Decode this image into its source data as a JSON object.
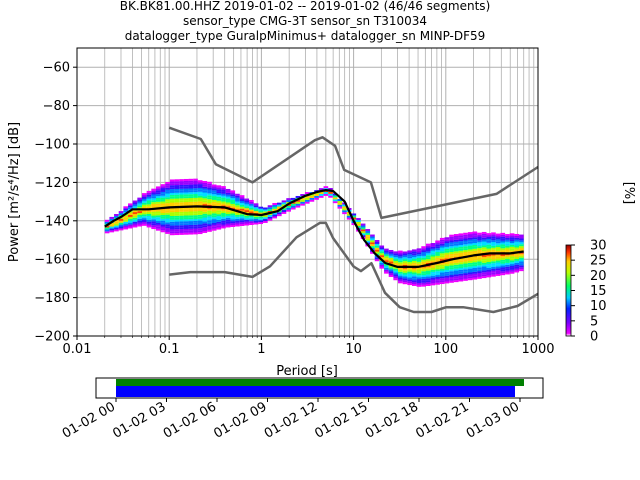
{
  "title_lines": [
    "BK.BK81.00.HHZ   2019-01-02 -- 2019-01-02  (46/46 segments)",
    "sensor_type CMG-3T sensor_sn T310034",
    "datalogger_type GuralpMinimus+ datalogger_sn MINP-DF59"
  ],
  "chart_data": {
    "type": "heatmap",
    "xlabel": "Period [s]",
    "ylabel": "Power [m²/s⁴/Hz] [dB]",
    "xscale": "log",
    "xlim": [
      0.01,
      1000
    ],
    "ylim": [
      -200,
      -50
    ],
    "x_ticks": [
      "0.01",
      "0.1",
      "1",
      "10",
      "100",
      "1000"
    ],
    "y_ticks": [
      "−200",
      "−180",
      "−160",
      "−140",
      "−120",
      "−100",
      "−80",
      "−60"
    ],
    "grid": true,
    "colorbar": {
      "label": "[%]",
      "range": [
        0,
        30
      ],
      "ticks": [
        "0",
        "5",
        "10",
        "15",
        "20",
        "25",
        "30"
      ]
    },
    "series": [
      {
        "role": "noise-model-high",
        "color": "#666666",
        "x": [
          0.1,
          0.22,
          0.32,
          0.8,
          3.8,
          4.6,
          6.3,
          7.9,
          15.4,
          20,
          354.8,
          1000
        ],
        "y": [
          -91.5,
          -97.4,
          -110.5,
          -120,
          -98,
          -96.5,
          -101,
          -113.5,
          -120,
          -138.5,
          -126,
          -112
        ]
      },
      {
        "role": "noise-model-low",
        "color": "#666666",
        "x": [
          0.1,
          0.17,
          0.4,
          0.8,
          1.24,
          2.4,
          4.3,
          5,
          6,
          10,
          12,
          15.6,
          21.9,
          31.6,
          45,
          70,
          101,
          154,
          328,
          600,
          1000
        ],
        "y": [
          -168,
          -166.7,
          -166.7,
          -169.2,
          -163.7,
          -148.6,
          -141.1,
          -141.1,
          -149,
          -163.8,
          -166.2,
          -162.1,
          -177.5,
          -185,
          -187.5,
          -187.5,
          -185,
          -185,
          -187.5,
          -184.4,
          -178
        ]
      },
      {
        "role": "median",
        "color": "#000000",
        "x": [
          0.02,
          0.025,
          0.03,
          0.04,
          0.06,
          0.1,
          0.2,
          0.4,
          0.7,
          1,
          1.5,
          2,
          3,
          4,
          5,
          6,
          8,
          10,
          13,
          17,
          22,
          30,
          50,
          80,
          120,
          200,
          300,
          500,
          700
        ],
        "y": [
          -143,
          -140,
          -138,
          -134,
          -134,
          -133,
          -132.5,
          -133,
          -136.5,
          -137,
          -135,
          -131,
          -127,
          -125,
          -124,
          -124.5,
          -130,
          -140,
          -150,
          -157,
          -162,
          -164,
          -164,
          -162,
          -160,
          -158,
          -157,
          -157,
          -156
        ]
      }
    ],
    "density_distribution": {
      "note": "probability density per period bin",
      "x": [
        0.02,
        0.05,
        0.1,
        0.2,
        0.4,
        1,
        2,
        5,
        10,
        20,
        30,
        50,
        100,
        200,
        500,
        700
      ],
      "y_center": [
        -143,
        -134,
        -133,
        -132.5,
        -133,
        -137,
        -131,
        -124,
        -140,
        -160,
        -164,
        -164,
        -160,
        -158,
        -157,
        -156
      ],
      "spread": [
        3,
        8,
        14,
        14,
        10,
        4,
        3,
        2,
        3,
        6,
        8,
        10,
        12,
        12,
        10,
        9
      ]
    }
  },
  "time_axis": {
    "ticks": [
      "01-02 00",
      "01-02 03",
      "01-02 06",
      "01-02 09",
      "01-02 12",
      "01-02 15",
      "01-02 18",
      "01-02 21",
      "01-03 00"
    ],
    "coverage_colors": {
      "data": "#0000ff",
      "psd": "#008000"
    }
  }
}
